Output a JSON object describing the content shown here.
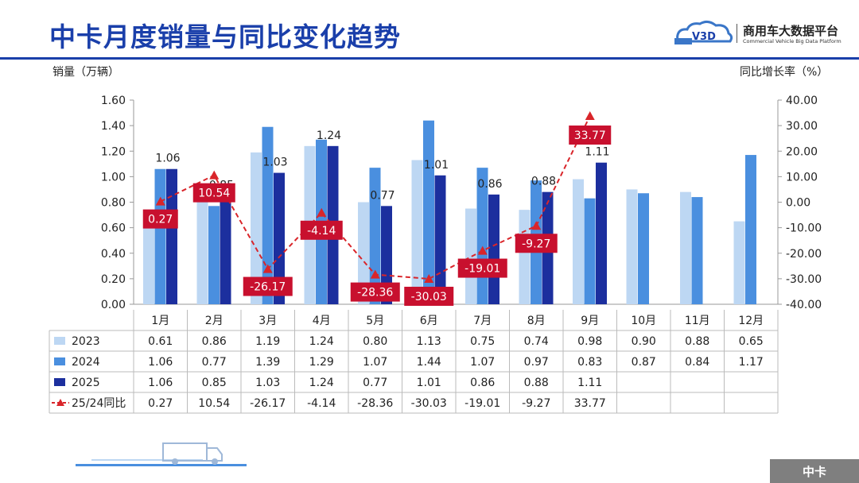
{
  "header": {
    "title": "中卡月度销量与同比变化趋势",
    "logo_name": "商用车大数据平台",
    "logo_sub": "Commercial Vehicle Big Data Platform",
    "logo_mark": "V3D"
  },
  "axes": {
    "left_title": "销量（万辆）",
    "right_title": "同比增长率（%）"
  },
  "footer": {
    "tag": "中卡"
  },
  "colors": {
    "s2023": "#bdd7f3",
    "s2024": "#4a8fdf",
    "s2025": "#1c2f9e",
    "yoy": "#d9252a",
    "title": "#1a3faa"
  },
  "chart_data": {
    "type": "bar",
    "categories": [
      "1月",
      "2月",
      "3月",
      "4月",
      "5月",
      "6月",
      "7月",
      "8月",
      "9月",
      "10月",
      "11月",
      "12月"
    ],
    "series": [
      {
        "name": "2023",
        "values": [
          0.61,
          0.86,
          1.19,
          1.24,
          0.8,
          1.13,
          0.75,
          0.74,
          0.98,
          0.9,
          0.88,
          0.65
        ]
      },
      {
        "name": "2024",
        "values": [
          1.06,
          0.77,
          1.39,
          1.29,
          1.07,
          1.44,
          1.07,
          0.97,
          0.83,
          0.87,
          0.84,
          1.17
        ]
      },
      {
        "name": "2025",
        "values": [
          1.06,
          0.85,
          1.03,
          1.24,
          0.77,
          1.01,
          0.86,
          0.88,
          1.11,
          null,
          null,
          null
        ]
      }
    ],
    "line_series": {
      "name": "25/24同比",
      "type": "line",
      "axis": "right",
      "values": [
        0.27,
        10.54,
        -26.17,
        -4.14,
        -28.36,
        -30.03,
        -19.01,
        -9.27,
        33.77,
        null,
        null,
        null
      ]
    },
    "bar_labels_2025": [
      "1.06",
      "0.85",
      "1.03",
      "1.24",
      "0.77",
      "1.01",
      "0.86",
      "0.88",
      "1.11"
    ],
    "yoy_labels": [
      "0.27",
      "10.54",
      "-26.17",
      "-4.14",
      "-28.36",
      "-30.03",
      "-19.01",
      "-9.27",
      "33.77"
    ],
    "ylim_left": [
      0,
      1.6
    ],
    "ylim_right": [
      -40,
      40
    ],
    "yticks_left": [
      "0.00",
      "0.20",
      "0.40",
      "0.60",
      "0.80",
      "1.00",
      "1.20",
      "1.40",
      "1.60"
    ],
    "yticks_right": [
      "-40.00",
      "-30.00",
      "-20.00",
      "-10.00",
      "0.00",
      "10.00",
      "20.00",
      "30.00",
      "40.00"
    ],
    "table": {
      "rows": [
        {
          "label": "2023",
          "values": [
            "0.61",
            "0.86",
            "1.19",
            "1.24",
            "0.80",
            "1.13",
            "0.75",
            "0.74",
            "0.98",
            "0.90",
            "0.88",
            "0.65"
          ]
        },
        {
          "label": "2024",
          "values": [
            "1.06",
            "0.77",
            "1.39",
            "1.29",
            "1.07",
            "1.44",
            "1.07",
            "0.97",
            "0.83",
            "0.87",
            "0.84",
            "1.17"
          ]
        },
        {
          "label": "2025",
          "values": [
            "1.06",
            "0.85",
            "1.03",
            "1.24",
            "0.77",
            "1.01",
            "0.86",
            "0.88",
            "1.11",
            "",
            "",
            ""
          ]
        },
        {
          "label": "25/24同比",
          "values": [
            "0.27",
            "10.54",
            "-26.17",
            "-4.14",
            "-28.36",
            "-30.03",
            "-19.01",
            "-9.27",
            "33.77",
            "",
            "",
            ""
          ]
        }
      ]
    },
    "grid": false,
    "legend": "table-left"
  }
}
